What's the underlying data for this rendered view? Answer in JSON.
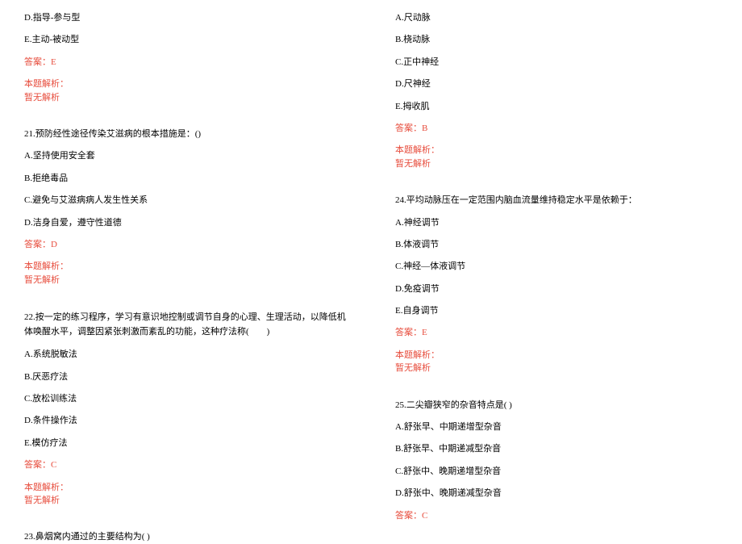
{
  "colors": {
    "text": "#000000",
    "answer": "#e74c3c",
    "background": "#ffffff"
  },
  "typography": {
    "fontSize": 11,
    "fontFamily": "SimSun",
    "lineHeight": 1.4
  },
  "leftColumn": {
    "prevOptions": {
      "d": "D.指导-参与型",
      "e": "E.主动-被动型"
    },
    "prevAnswer": "答案：E",
    "analysisLabel": "本题解析：",
    "noAnalysis": "暂无解析",
    "q21": {
      "stem": "21.预防经性途径传染艾滋病的根本措施是：()",
      "a": "A.坚持使用安全套",
      "b": "B.拒绝毒品",
      "c": "C.避免与艾滋病病人发生性关系",
      "d": "D.洁身自爱，遵守性道德",
      "answer": "答案：D",
      "analysisLabel": "本题解析：",
      "noAnalysis": "暂无解析"
    },
    "q22": {
      "stem": "22.按一定的练习程序，学习有意识地控制或调节自身的心理、生理活动，以降低机体唤醒水平，调整因紧张刺激而紊乱的功能，这种疗法称(　　)",
      "a": "A.系统脱敏法",
      "b": "B.厌恶疗法",
      "c": "C.放松训练法",
      "d": "D.条件操作法",
      "e": "E.模仿疗法",
      "answer": "答案：C",
      "analysisLabel": "本题解析：",
      "noAnalysis": "暂无解析"
    },
    "q23": {
      "stem": "23.鼻烟窝内通过的主要结构为( )"
    }
  },
  "rightColumn": {
    "q23Options": {
      "a": "A.尺动脉",
      "b": "B.桡动脉",
      "c": "C.正中神经",
      "d": "D.尺神经",
      "e": "E.拇收肌",
      "answer": "答案：B",
      "analysisLabel": "本题解析：",
      "noAnalysis": "暂无解析"
    },
    "q24": {
      "stem": "24.平均动脉压在一定范围内脑血流量维持稳定水平是依赖于：",
      "a": "A.神经调节",
      "b": "B.体液调节",
      "c": "C.神经—体液调节",
      "d": "D.免疫调节",
      "e": "E.自身调节",
      "answer": "答案：E",
      "analysisLabel": "本题解析：",
      "noAnalysis": "暂无解析"
    },
    "q25": {
      "stem": "25.二尖瓣狭窄的杂音特点是( )",
      "a": "A.舒张早、中期递增型杂音",
      "b": "B.舒张早、中期递减型杂音",
      "c": "C.舒张中、晚期递增型杂音",
      "d": "D.舒张中、晚期递减型杂音",
      "answer": "答案：C"
    }
  }
}
